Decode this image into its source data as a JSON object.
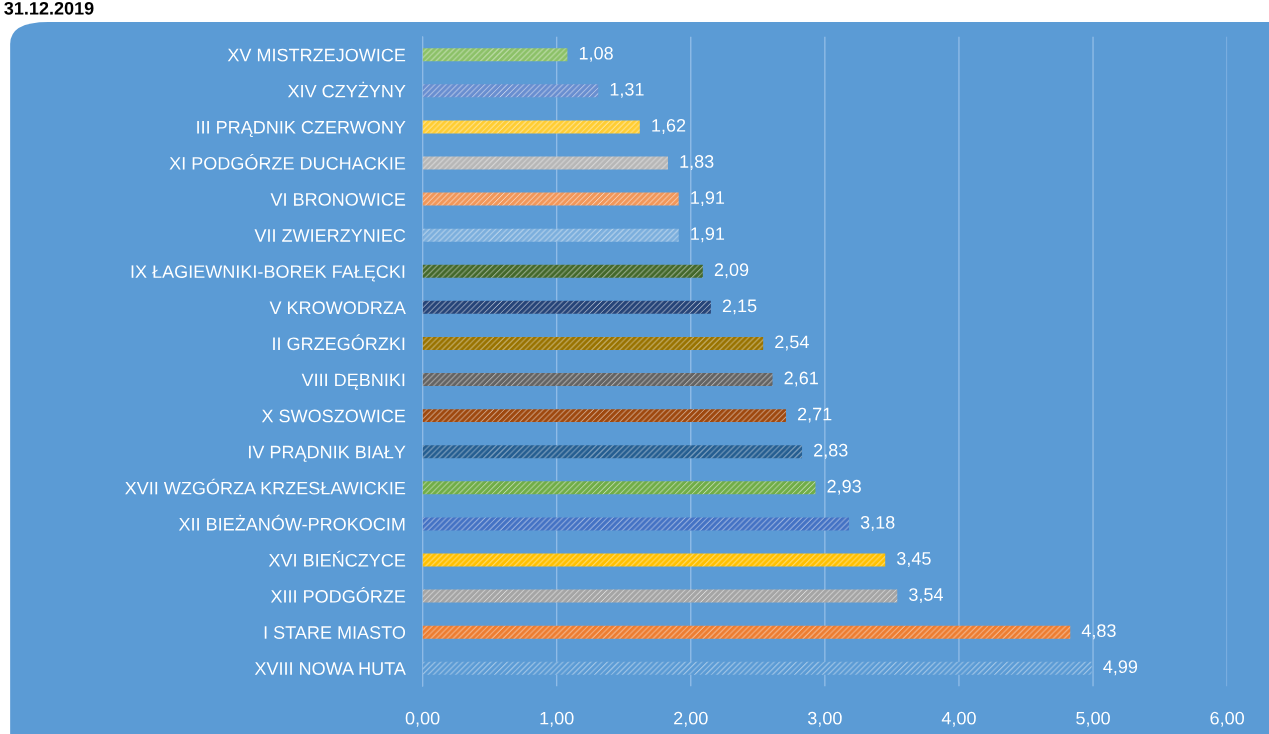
{
  "chart_data": {
    "type": "bar",
    "orientation": "horizontal",
    "title": "31.12.2019",
    "categories": [
      "XV MISTRZEJOWICE",
      "XIV CZYŻYNY",
      "III PRĄDNIK CZERWONY",
      "XI PODGÓRZE DUCHACKIE",
      "VI BRONOWICE",
      "VII ZWIERZYNIEC",
      "IX ŁAGIEWNIKI-BOREK FAŁĘCKI",
      "V KROWODRZA",
      "II GRZEGÓRZKI",
      "VIII DĘBNIKI",
      "X SWOSZOWICE",
      "IV PRĄDNIK BIAŁY",
      "XVII WZGÓRZA KRZESŁAWICKIE",
      "XII BIEŻANÓW-PROKOCIM",
      "XVI BIEŃCZYCE",
      "XIII PODGÓRZE",
      "I STARE MIASTO",
      "XVIII NOWA HUTA"
    ],
    "values": [
      1.08,
      1.31,
      1.62,
      1.83,
      1.91,
      1.91,
      2.09,
      2.15,
      2.54,
      2.61,
      2.71,
      2.83,
      2.93,
      3.18,
      3.45,
      3.54,
      4.83,
      4.99
    ],
    "value_labels": [
      "1,08",
      "1,31",
      "1,62",
      "1,83",
      "1,91",
      "1,91",
      "2,09",
      "2,15",
      "2,54",
      "2,61",
      "2,71",
      "2,83",
      "2,93",
      "3,18",
      "3,45",
      "3,54",
      "4,83",
      "4,99"
    ],
    "colors": [
      "#8cc168",
      "#698ed0",
      "#ffcd33",
      "#b7b7b7",
      "#f1975a",
      "#7cafdd",
      "#43682b",
      "#264478",
      "#997300",
      "#636363",
      "#9e480e",
      "#255e91",
      "#70ad47",
      "#4472c4",
      "#ffc000",
      "#a5a5a5",
      "#ed7d31",
      "#5b9bd5"
    ],
    "xlim": [
      0,
      6
    ],
    "xticks": [
      {
        "value": 0,
        "label": "0,00"
      },
      {
        "value": 1,
        "label": "1,00"
      },
      {
        "value": 2,
        "label": "2,00"
      },
      {
        "value": 3,
        "label": "3,00"
      },
      {
        "value": 4,
        "label": "4,00"
      },
      {
        "value": 5,
        "label": "5,00"
      },
      {
        "value": 6,
        "label": "6,00"
      }
    ],
    "grid": "x",
    "legend": false
  }
}
